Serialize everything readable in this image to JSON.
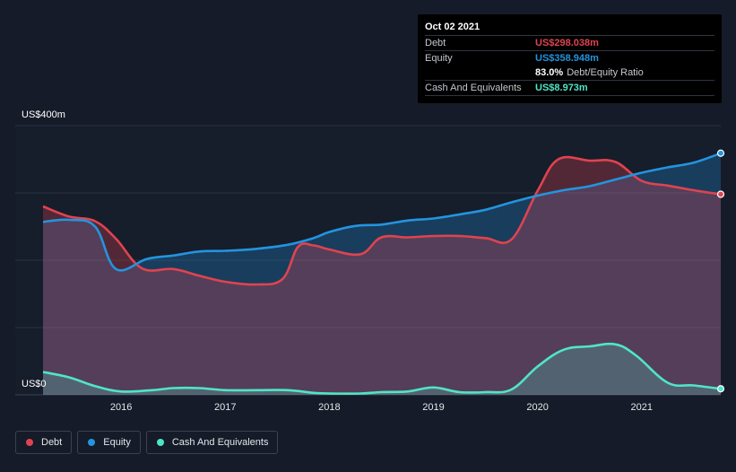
{
  "chart_data": {
    "type": "area",
    "y_unit_prefix": "US$",
    "y_axis_labels": [
      "US$400m",
      "US$0"
    ],
    "ylim": [
      0,
      400
    ],
    "xlim": [
      2015.25,
      2021.76
    ],
    "x_ticks": [
      2016,
      2017,
      2018,
      2019,
      2020,
      2021
    ],
    "grid": true,
    "legend_position": "bottom-left",
    "series": [
      {
        "name": "Debt",
        "color": "#e0434f",
        "points": [
          [
            2015.25,
            280
          ],
          [
            2015.5,
            265
          ],
          [
            2015.75,
            258
          ],
          [
            2015.95,
            232
          ],
          [
            2016.2,
            188
          ],
          [
            2016.5,
            187
          ],
          [
            2016.75,
            177
          ],
          [
            2017.0,
            168
          ],
          [
            2017.3,
            164
          ],
          [
            2017.55,
            172
          ],
          [
            2017.7,
            220
          ],
          [
            2017.85,
            222
          ],
          [
            2018.0,
            216
          ],
          [
            2018.3,
            209
          ],
          [
            2018.5,
            234
          ],
          [
            2018.75,
            234
          ],
          [
            2019.0,
            236
          ],
          [
            2019.25,
            236
          ],
          [
            2019.5,
            233
          ],
          [
            2019.75,
            231
          ],
          [
            2020.0,
            303
          ],
          [
            2020.2,
            350
          ],
          [
            2020.5,
            348
          ],
          [
            2020.75,
            346
          ],
          [
            2021.0,
            318
          ],
          [
            2021.25,
            311
          ],
          [
            2021.5,
            304
          ],
          [
            2021.76,
            298
          ]
        ]
      },
      {
        "name": "Equity",
        "color": "#2394df",
        "points": [
          [
            2015.25,
            257
          ],
          [
            2015.5,
            260
          ],
          [
            2015.75,
            250
          ],
          [
            2015.95,
            187
          ],
          [
            2016.25,
            202
          ],
          [
            2016.5,
            207
          ],
          [
            2016.75,
            213
          ],
          [
            2017.0,
            214
          ],
          [
            2017.3,
            217
          ],
          [
            2017.6,
            223
          ],
          [
            2017.85,
            233
          ],
          [
            2018.0,
            242
          ],
          [
            2018.25,
            251
          ],
          [
            2018.5,
            253
          ],
          [
            2018.75,
            259
          ],
          [
            2019.0,
            262
          ],
          [
            2019.25,
            268
          ],
          [
            2019.5,
            275
          ],
          [
            2019.75,
            286
          ],
          [
            2020.0,
            296
          ],
          [
            2020.25,
            304
          ],
          [
            2020.5,
            310
          ],
          [
            2020.75,
            320
          ],
          [
            2021.0,
            330
          ],
          [
            2021.25,
            338
          ],
          [
            2021.5,
            345
          ],
          [
            2021.76,
            359
          ]
        ]
      },
      {
        "name": "Cash And Equivalents",
        "color": "#4fe5c7",
        "points": [
          [
            2015.25,
            34
          ],
          [
            2015.5,
            26
          ],
          [
            2015.75,
            13
          ],
          [
            2016.0,
            5
          ],
          [
            2016.3,
            7
          ],
          [
            2016.5,
            10
          ],
          [
            2016.75,
            10
          ],
          [
            2017.0,
            7
          ],
          [
            2017.3,
            7
          ],
          [
            2017.6,
            7
          ],
          [
            2017.85,
            3
          ],
          [
            2018.0,
            2
          ],
          [
            2018.3,
            2
          ],
          [
            2018.5,
            4
          ],
          [
            2018.75,
            5
          ],
          [
            2019.0,
            11
          ],
          [
            2019.25,
            4
          ],
          [
            2019.5,
            4
          ],
          [
            2019.75,
            8
          ],
          [
            2020.0,
            42
          ],
          [
            2020.25,
            67
          ],
          [
            2020.5,
            72
          ],
          [
            2020.75,
            75
          ],
          [
            2020.95,
            58
          ],
          [
            2021.25,
            18
          ],
          [
            2021.5,
            14
          ],
          [
            2021.76,
            9
          ]
        ]
      }
    ]
  },
  "tooltip": {
    "date": "Oct 02 2021",
    "rows": [
      {
        "label": "Debt",
        "value": "US$298.038m",
        "color": "#e0434f"
      },
      {
        "label": "Equity",
        "value": "US$358.948m",
        "color": "#2394df"
      },
      {
        "label": "",
        "value": "83.0%",
        "sub": "Debt/Equity Ratio",
        "color": "#ffffff"
      },
      {
        "label": "Cash And Equivalents",
        "value": "US$8.973m",
        "color": "#4fe5c7"
      }
    ]
  },
  "legend": [
    {
      "label": "Debt",
      "color": "#e0434f"
    },
    {
      "label": "Equity",
      "color": "#2394df"
    },
    {
      "label": "Cash And Equivalents",
      "color": "#4fe5c7"
    }
  ]
}
